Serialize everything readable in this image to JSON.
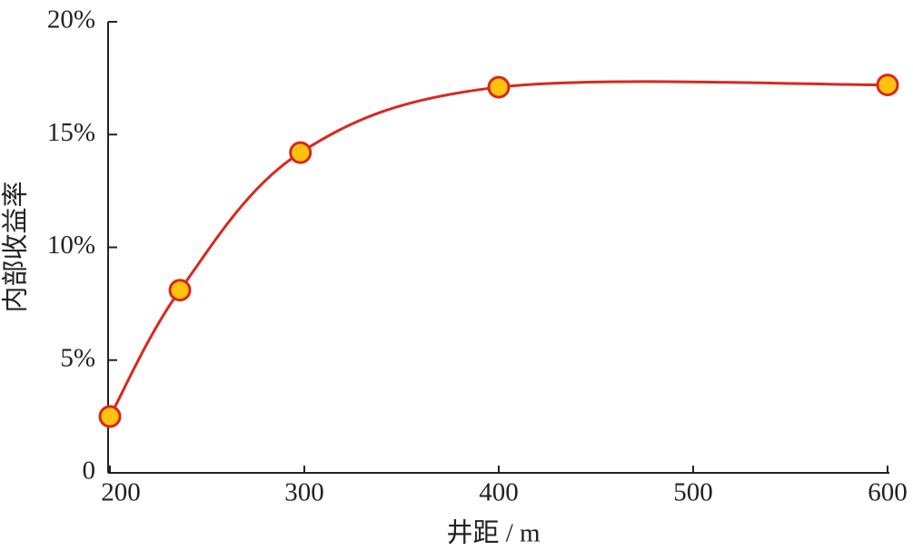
{
  "chart_data": {
    "type": "line",
    "x_label": "井距 / m",
    "y_label": "内部收益率",
    "x": [
      200,
      236,
      298,
      400,
      600
    ],
    "series": [
      {
        "name": "内部收益率",
        "color": "#d9281e",
        "marker_color": "#ffc20e",
        "values": [
          2.5,
          8.1,
          14.2,
          17.1,
          17.2
        ]
      }
    ],
    "xlim": [
      200,
      600
    ],
    "xticks": [
      200,
      300,
      400,
      500,
      600
    ],
    "ylim": [
      0,
      20
    ],
    "yticks": [
      0,
      {
        "value": 5,
        "label": "5%"
      },
      {
        "value": 10,
        "label": "10%"
      },
      {
        "value": 15,
        "label": "15%"
      },
      {
        "value": 20,
        "label": "20%"
      }
    ],
    "smooth": true,
    "grid": false
  }
}
